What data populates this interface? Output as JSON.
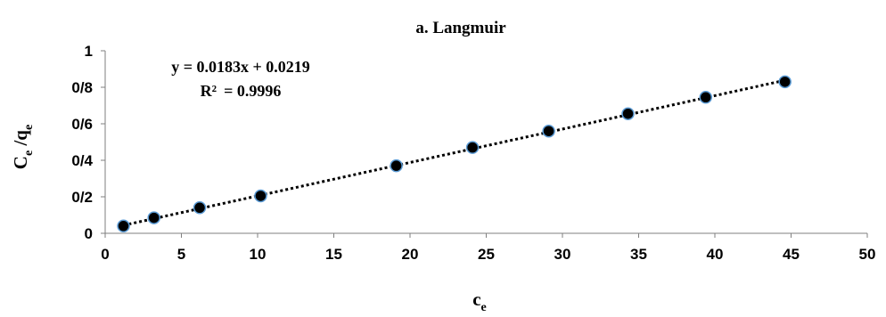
{
  "chart_data": {
    "type": "scatter",
    "title": "a. Langmuir",
    "xlabel": {
      "main": "c",
      "sub": "e"
    },
    "ylabel": {
      "main1": "C",
      "sub1": "e",
      "sep": " /q",
      "sub2": "e"
    },
    "xlim": [
      0,
      50
    ],
    "ylim": [
      0,
      1
    ],
    "xticks": [
      0,
      5,
      10,
      15,
      20,
      25,
      30,
      35,
      40,
      45,
      50
    ],
    "yticks": [
      {
        "value": 0,
        "label": "0"
      },
      {
        "value": 0.2,
        "label": "0/2"
      },
      {
        "value": 0.4,
        "label": "0/4"
      },
      {
        "value": 0.6,
        "label": "0/6"
      },
      {
        "value": 0.8,
        "label": "0/8"
      },
      {
        "value": 1,
        "label": "1"
      }
    ],
    "grid": false,
    "series": [
      {
        "x": [
          1.2,
          3.2,
          6.2,
          10.2,
          19.1,
          24.1,
          29.1,
          34.3,
          39.4,
          44.6
        ],
        "y": [
          0.04,
          0.085,
          0.14,
          0.205,
          0.37,
          0.47,
          0.56,
          0.655,
          0.745,
          0.83
        ],
        "marker_fill": "#000000",
        "marker_edge": "#5b9bd5"
      }
    ],
    "trendline": {
      "type": "linear",
      "slope": 0.0183,
      "intercept": 0.0219,
      "x_range": [
        1.2,
        44.6
      ],
      "style": "dotted",
      "color": "#000000"
    },
    "annotations": {
      "equation": "y = 0.0183x + 0.0219",
      "r2_label": "R²",
      "r2_value": "= 0.9996"
    }
  }
}
